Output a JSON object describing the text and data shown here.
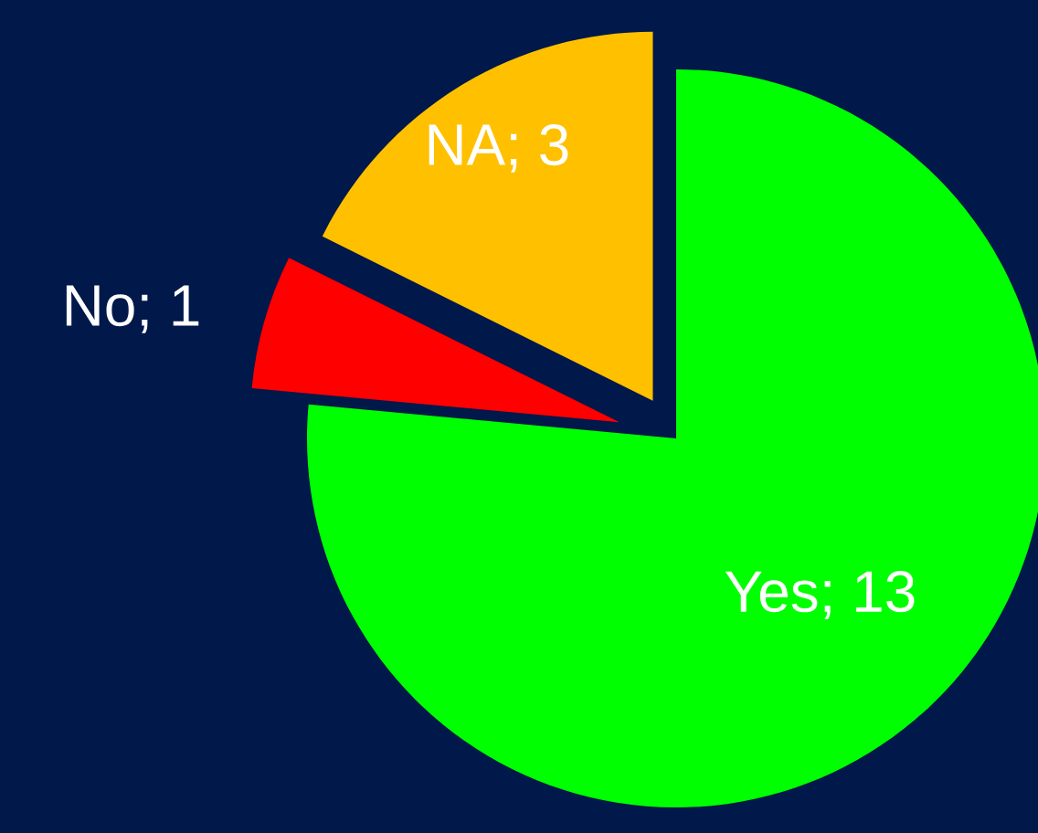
{
  "chart_data": {
    "type": "pie",
    "categories": [
      "Yes; 13",
      "No; 1",
      "NA; 3"
    ],
    "values": [
      13,
      1,
      3
    ],
    "colors": [
      "#00ff00",
      "#ff0000",
      "#ffc000"
    ]
  }
}
